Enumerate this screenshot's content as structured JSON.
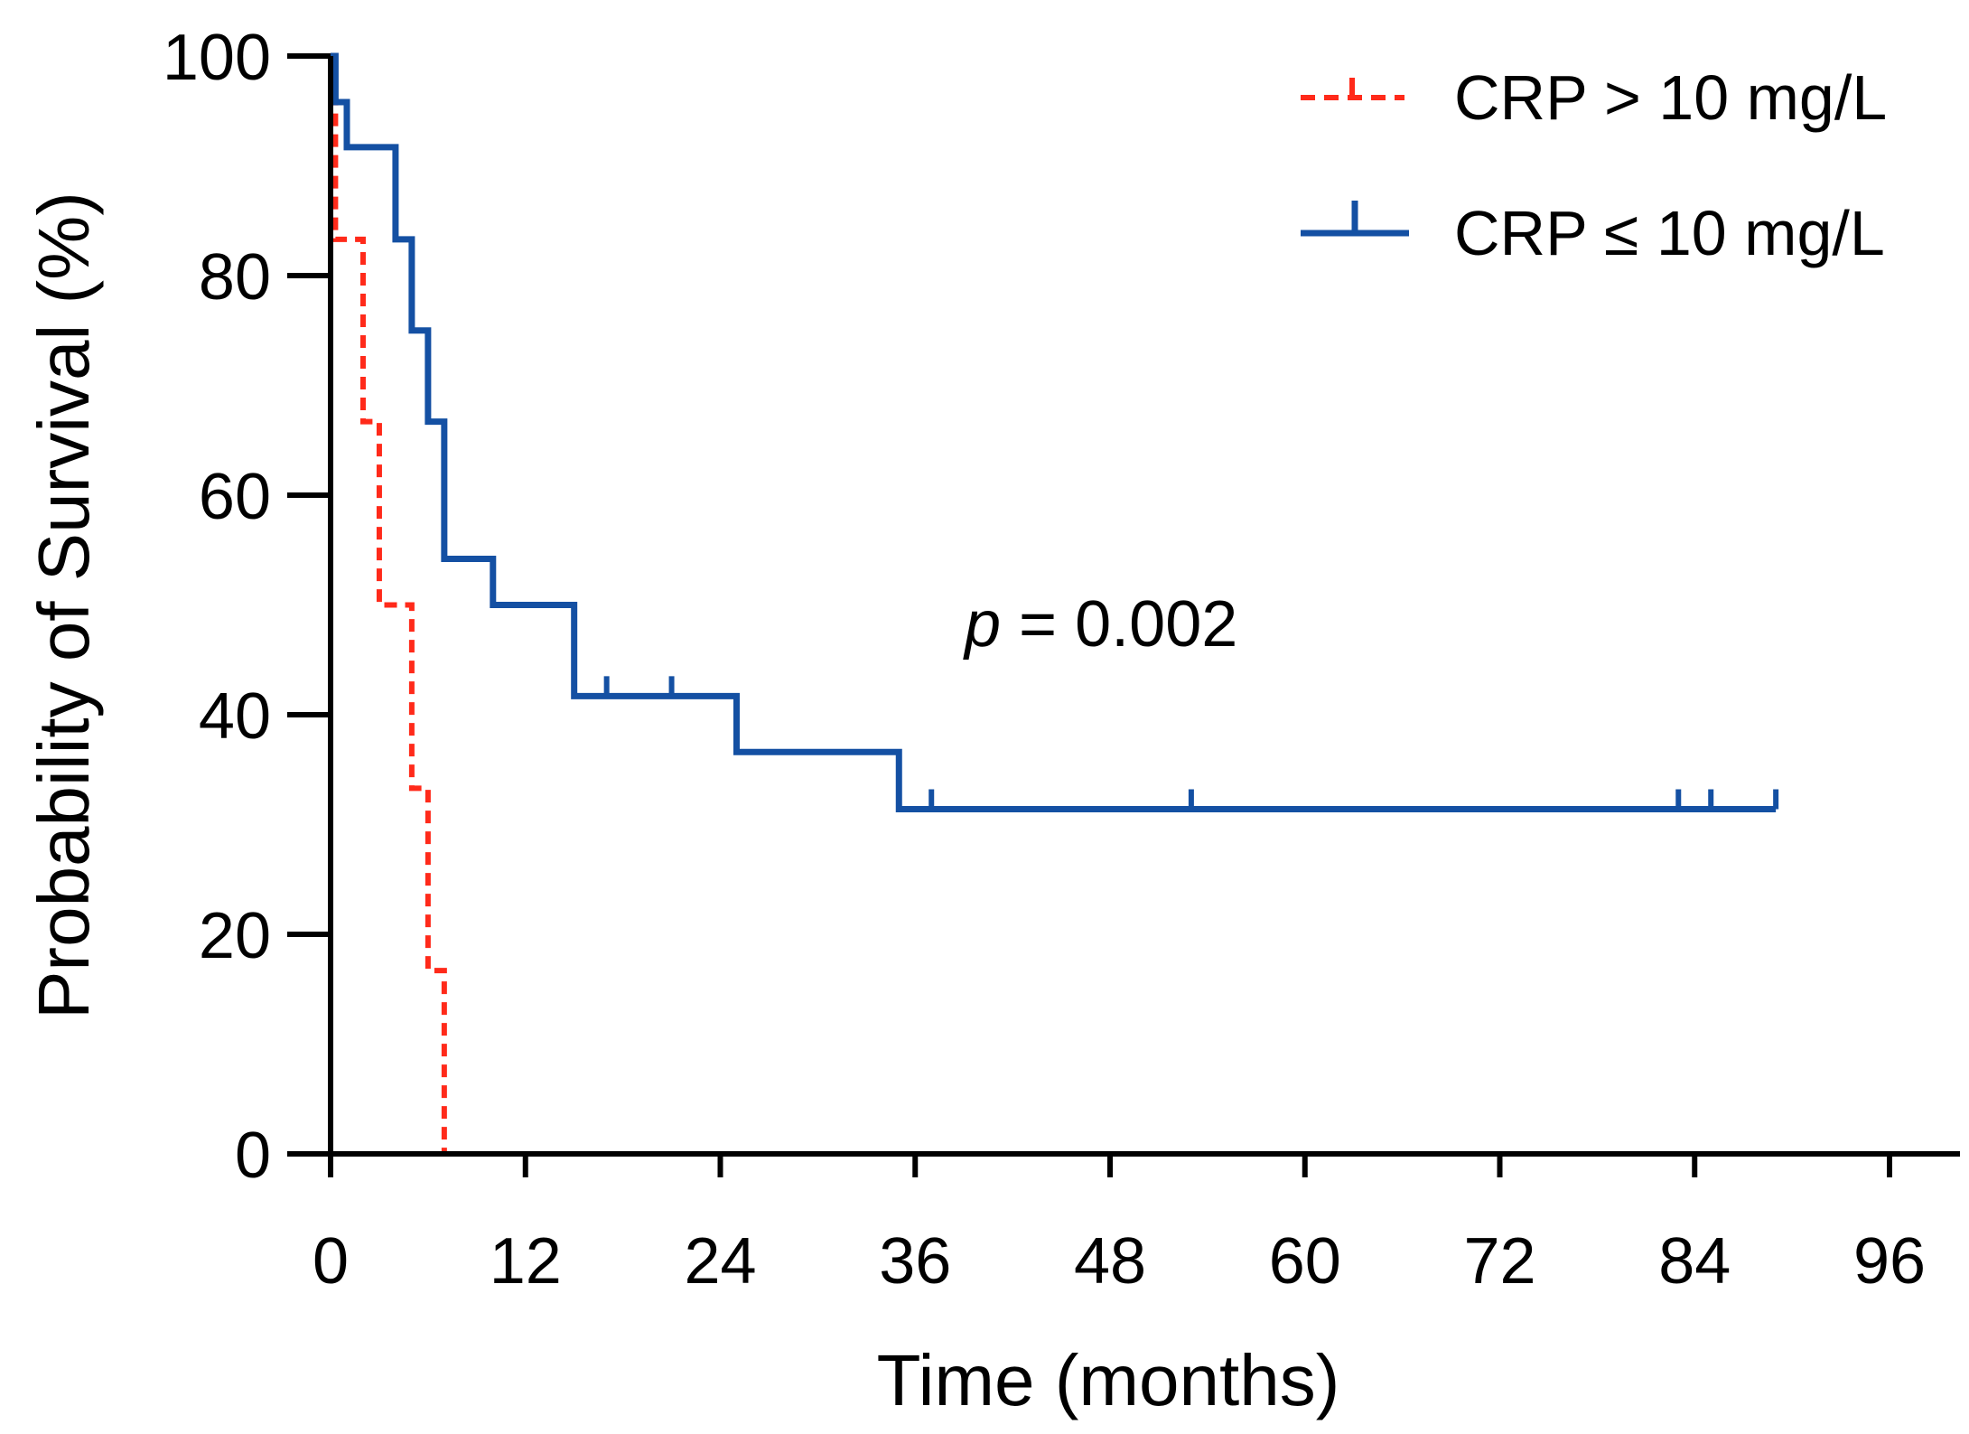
{
  "chart_data": {
    "type": "line",
    "subtype": "kaplan-meier",
    "title": "",
    "xlabel": "Time (months)",
    "ylabel": "Probability of Survival (%)",
    "xlim": [
      0,
      96
    ],
    "ylim": [
      0,
      100
    ],
    "xticks": [
      0,
      12,
      24,
      36,
      48,
      60,
      72,
      84,
      96
    ],
    "yticks": [
      0,
      20,
      40,
      60,
      80,
      100
    ],
    "legend_position": "top-right",
    "annotation": {
      "italic": "p",
      "rest": " = 0.002"
    },
    "series": [
      {
        "name": "CRP > 10 mg/L",
        "color": "#ff2a1a",
        "style": "dashed",
        "steps": [
          [
            0,
            100
          ],
          [
            0.3,
            83.3
          ],
          [
            2,
            66.7
          ],
          [
            3,
            50
          ],
          [
            5,
            33.3
          ],
          [
            6,
            16.7
          ],
          [
            7,
            0
          ]
        ],
        "censored": []
      },
      {
        "name": "CRP ≤ 10 mg/L",
        "color": "#1450a3",
        "style": "solid",
        "steps": [
          [
            0,
            100
          ],
          [
            0.3,
            95.8
          ],
          [
            1,
            91.7
          ],
          [
            4,
            83.3
          ],
          [
            5,
            75
          ],
          [
            6,
            66.7
          ],
          [
            7,
            54.2
          ],
          [
            10,
            50
          ],
          [
            15,
            41.7
          ],
          [
            25,
            36.6
          ],
          [
            35,
            31.4
          ],
          [
            89,
            31.4
          ]
        ],
        "censored": [
          [
            17,
            41.7
          ],
          [
            21,
            41.7
          ],
          [
            37,
            31.4
          ],
          [
            53,
            31.4
          ],
          [
            83,
            31.4
          ],
          [
            85,
            31.4
          ],
          [
            89,
            31.4
          ]
        ]
      }
    ]
  }
}
